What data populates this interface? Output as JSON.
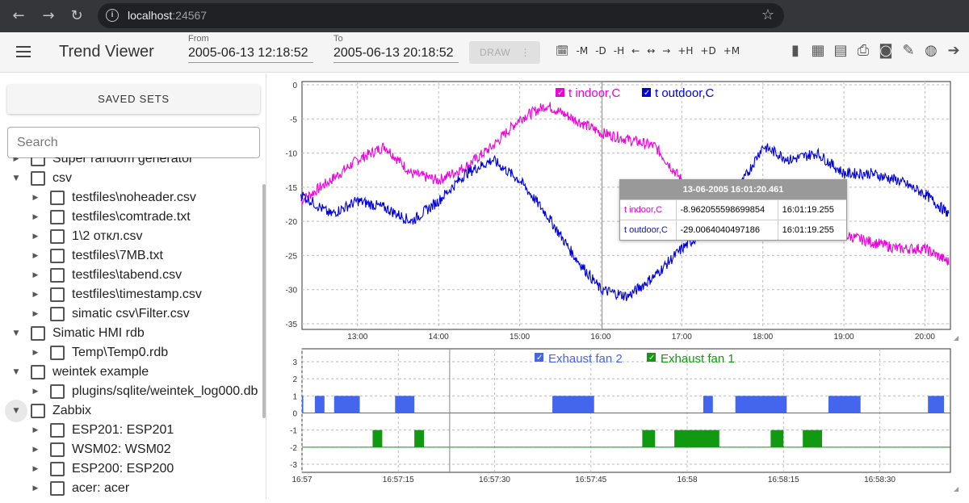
{
  "browser": {
    "url_host": "localhost",
    "url_port": ":24567"
  },
  "app": {
    "title": "Trend Viewer",
    "from_label": "From",
    "from_value": "2005-06-13 12:18:52",
    "to_label": "To",
    "to_value": "2005-06-13 20:18:52",
    "draw_label": "DRAW"
  },
  "nav": [
    "-M",
    "-D",
    "-H",
    "←",
    "↔",
    "→",
    "+H",
    "+D",
    "+M"
  ],
  "sidebar": {
    "saved_sets_label": "SAVED SETS",
    "search_placeholder": "Search",
    "tree": [
      {
        "label": "Super random generator",
        "level": 0,
        "expanded": false
      },
      {
        "label": "csv",
        "level": 0,
        "expanded": true
      },
      {
        "label": "testfiles\\noheader.csv",
        "level": 1,
        "expanded": false
      },
      {
        "label": "testfiles\\comtrade.txt",
        "level": 1,
        "expanded": false
      },
      {
        "label": "1\\2 откл.csv",
        "level": 1,
        "expanded": false
      },
      {
        "label": "testfiles\\7MB.txt",
        "level": 1,
        "expanded": false
      },
      {
        "label": "testfiles\\tabend.csv",
        "level": 1,
        "expanded": false
      },
      {
        "label": "testfiles\\timestamp.csv",
        "level": 1,
        "expanded": false
      },
      {
        "label": "simatic csv\\Filter.csv",
        "level": 1,
        "expanded": false
      },
      {
        "label": "Simatic HMI rdb",
        "level": 0,
        "expanded": true
      },
      {
        "label": "Temp\\Temp0.rdb",
        "level": 1,
        "expanded": false
      },
      {
        "label": "weintek example",
        "level": 0,
        "expanded": true
      },
      {
        "label": "plugins/sqlite/weintek_log000.db",
        "level": 1,
        "expanded": false
      },
      {
        "label": "Zabbix",
        "level": 0,
        "expanded": true
      },
      {
        "label": "ESP201: ESP201",
        "level": 1,
        "expanded": false
      },
      {
        "label": "WSM02: WSM02",
        "level": 1,
        "expanded": false
      },
      {
        "label": "ESP200: ESP200",
        "level": 1,
        "expanded": false
      },
      {
        "label": "acer: acer",
        "level": 1,
        "expanded": false
      }
    ]
  },
  "tooltip": {
    "header": "13-06-2005 16:01:20.461",
    "rows": [
      {
        "name": "t indoor,C",
        "value": "-8.962055598699854",
        "time": "16:01:19.255",
        "color": "#e000d0"
      },
      {
        "name": "t outdoor,C",
        "value": "-29.0064040497186",
        "time": "16:01:19.255",
        "color": "#1010d0"
      }
    ]
  },
  "colors": {
    "indoor": "#ee00dd",
    "outdoor": "#0000dd",
    "fan2": "#4466ee",
    "fan1": "#119911"
  },
  "chart_data": [
    {
      "type": "line",
      "series": [
        {
          "name": "t indoor,C",
          "x": [
            "12:18",
            "12:40",
            "13:00",
            "13:20",
            "13:40",
            "14:00",
            "14:20",
            "14:40",
            "15:00",
            "15:20",
            "15:40",
            "16:00",
            "16:20",
            "16:40",
            "17:00",
            "17:20",
            "17:40",
            "18:00",
            "18:20",
            "18:40",
            "19:00",
            "19:20",
            "19:40",
            "20:00",
            "20:18"
          ],
          "values": [
            -17,
            -14,
            -11,
            -9,
            -13,
            -14,
            -12,
            -9,
            -5,
            -3,
            -5,
            -7,
            -8,
            -9,
            -14,
            -18,
            -19,
            -20,
            -21,
            -21,
            -22,
            -23,
            -24,
            -24,
            -26
          ]
        },
        {
          "name": "t outdoor,C",
          "x": [
            "12:18",
            "12:40",
            "13:00",
            "13:20",
            "13:40",
            "14:00",
            "14:20",
            "14:40",
            "15:00",
            "15:20",
            "15:40",
            "16:00",
            "16:20",
            "16:40",
            "17:00",
            "17:20",
            "17:40",
            "18:00",
            "18:20",
            "18:40",
            "19:00",
            "19:20",
            "19:40",
            "20:00",
            "20:18"
          ],
          "values": [
            -16,
            -19,
            -17,
            -18,
            -20,
            -17,
            -13,
            -11,
            -14,
            -19,
            -25,
            -30,
            -31,
            -28,
            -24,
            -21,
            -16,
            -9,
            -11,
            -10,
            -13,
            -13,
            -14,
            -16,
            -19
          ]
        }
      ],
      "ylim": [
        -35,
        0
      ],
      "yticks": [
        "0",
        "-5",
        "-10",
        "-15",
        "-20",
        "-25",
        "-30",
        "-35"
      ],
      "xticks": [
        "13:00",
        "14:00",
        "15:00",
        "16:00",
        "17:00",
        "18:00",
        "19:00",
        "20:00"
      ],
      "legend": "top-center",
      "grid": true
    },
    {
      "type": "area",
      "series": [
        {
          "name": "Exhaust fan 2",
          "segments": [
            [
              "16:57:00",
              "16:57:00.2"
            ],
            [
              "16:57:02",
              "16:57:03.5"
            ],
            [
              "16:57:05",
              "16:57:09"
            ],
            [
              "16:57:14.5",
              "16:57:17.5"
            ],
            [
              "16:57:39",
              "16:57:45.5"
            ],
            [
              "16:58:02.5",
              "16:58:04"
            ],
            [
              "16:58:07.5",
              "16:58:15.5"
            ],
            [
              "16:58:22",
              "16:58:27"
            ],
            [
              "16:58:37.5",
              "16:58:40"
            ]
          ],
          "level": 1
        },
        {
          "name": "Exhaust fan 1",
          "segments": [
            [
              "16:57:11",
              "16:57:12.5"
            ],
            [
              "16:57:17.5",
              "16:57:19"
            ],
            [
              "16:57:53",
              "16:57:55"
            ],
            [
              "16:57:58",
              "16:58:05"
            ],
            [
              "16:58:13",
              "16:58:15"
            ],
            [
              "16:58:18",
              "16:58:21"
            ]
          ],
          "level": -2
        }
      ],
      "ylim": [
        -3,
        3
      ],
      "yticks": [
        "3",
        "2",
        "1",
        "0",
        "-1",
        "-2",
        "-3"
      ],
      "xticks": [
        "16:57",
        "16:57:15",
        "16:57:30",
        "16:57:45",
        "16:58",
        "16:58:15",
        "16:58:30"
      ],
      "legend": "top-center",
      "grid": true
    }
  ]
}
